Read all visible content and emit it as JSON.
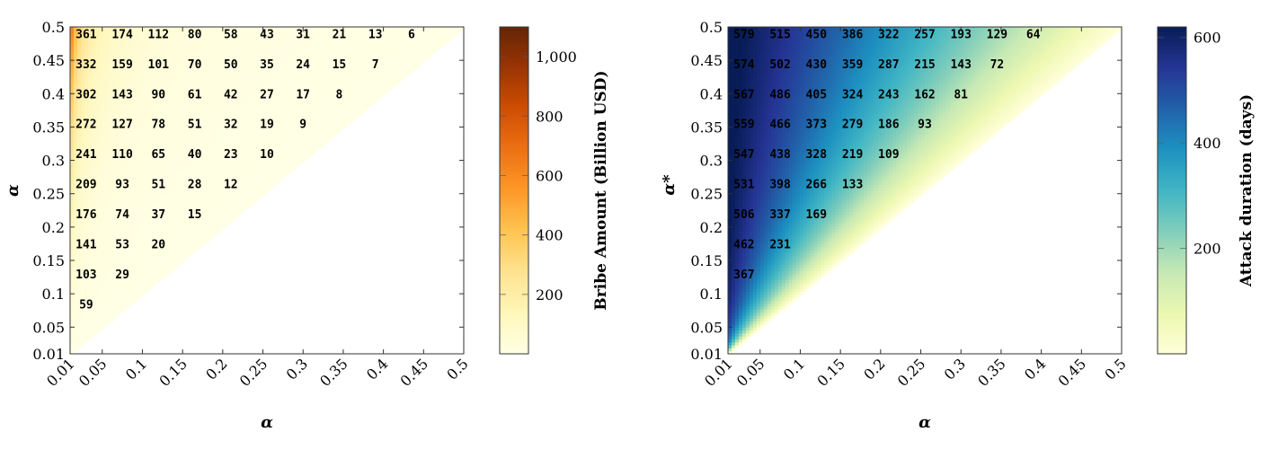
{
  "chart_data": [
    {
      "type": "heatmap",
      "xlabel": "α",
      "ylabel": "α",
      "colorbar_label": "Bribe Amount (Billion USD)",
      "colorbar_ticks": [
        "200",
        "400",
        "600",
        "800",
        "1,000"
      ],
      "colorbar_tick_values": [
        200,
        400,
        600,
        800,
        1000
      ],
      "colorbar_range": [
        0,
        1100
      ],
      "x_ticks": [
        "0.01",
        "0.05",
        "0.1",
        "0.15",
        "0.2",
        "0.25",
        "0.3",
        "0.35",
        "0.4",
        "0.45",
        "0.5"
      ],
      "y_ticks": [
        "0.01",
        "0.05",
        "0.1",
        "0.15",
        "0.2",
        "0.25",
        "0.3",
        "0.35",
        "0.4",
        "0.45",
        "0.5"
      ],
      "xlim": [
        0.01,
        0.5
      ],
      "ylim": [
        0.01,
        0.5
      ],
      "colormap": "YlOrBr",
      "annotations": [
        {
          "x": 0.03,
          "y": 0.49,
          "value": 361
        },
        {
          "x": 0.075,
          "y": 0.49,
          "value": 174
        },
        {
          "x": 0.12,
          "y": 0.49,
          "value": 112
        },
        {
          "x": 0.165,
          "y": 0.49,
          "value": 80
        },
        {
          "x": 0.21,
          "y": 0.49,
          "value": 58
        },
        {
          "x": 0.255,
          "y": 0.49,
          "value": 43
        },
        {
          "x": 0.3,
          "y": 0.49,
          "value": 31
        },
        {
          "x": 0.345,
          "y": 0.49,
          "value": 21
        },
        {
          "x": 0.39,
          "y": 0.49,
          "value": 13
        },
        {
          "x": 0.435,
          "y": 0.49,
          "value": 6
        },
        {
          "x": 0.03,
          "y": 0.445,
          "value": 332
        },
        {
          "x": 0.075,
          "y": 0.445,
          "value": 159
        },
        {
          "x": 0.12,
          "y": 0.445,
          "value": 101
        },
        {
          "x": 0.165,
          "y": 0.445,
          "value": 70
        },
        {
          "x": 0.21,
          "y": 0.445,
          "value": 50
        },
        {
          "x": 0.255,
          "y": 0.445,
          "value": 35
        },
        {
          "x": 0.3,
          "y": 0.445,
          "value": 24
        },
        {
          "x": 0.345,
          "y": 0.445,
          "value": 15
        },
        {
          "x": 0.39,
          "y": 0.445,
          "value": 7
        },
        {
          "x": 0.03,
          "y": 0.4,
          "value": 302
        },
        {
          "x": 0.075,
          "y": 0.4,
          "value": 143
        },
        {
          "x": 0.12,
          "y": 0.4,
          "value": 90
        },
        {
          "x": 0.165,
          "y": 0.4,
          "value": 61
        },
        {
          "x": 0.21,
          "y": 0.4,
          "value": 42
        },
        {
          "x": 0.255,
          "y": 0.4,
          "value": 27
        },
        {
          "x": 0.3,
          "y": 0.4,
          "value": 17
        },
        {
          "x": 0.345,
          "y": 0.4,
          "value": 8
        },
        {
          "x": 0.03,
          "y": 0.355,
          "value": 272
        },
        {
          "x": 0.075,
          "y": 0.355,
          "value": 127
        },
        {
          "x": 0.12,
          "y": 0.355,
          "value": 78
        },
        {
          "x": 0.165,
          "y": 0.355,
          "value": 51
        },
        {
          "x": 0.21,
          "y": 0.355,
          "value": 32
        },
        {
          "x": 0.255,
          "y": 0.355,
          "value": 19
        },
        {
          "x": 0.3,
          "y": 0.355,
          "value": 9
        },
        {
          "x": 0.03,
          "y": 0.31,
          "value": 241
        },
        {
          "x": 0.075,
          "y": 0.31,
          "value": 110
        },
        {
          "x": 0.12,
          "y": 0.31,
          "value": 65
        },
        {
          "x": 0.165,
          "y": 0.31,
          "value": 40
        },
        {
          "x": 0.21,
          "y": 0.31,
          "value": 23
        },
        {
          "x": 0.255,
          "y": 0.31,
          "value": 10
        },
        {
          "x": 0.03,
          "y": 0.265,
          "value": 209
        },
        {
          "x": 0.075,
          "y": 0.265,
          "value": 93
        },
        {
          "x": 0.12,
          "y": 0.265,
          "value": 51
        },
        {
          "x": 0.165,
          "y": 0.265,
          "value": 28
        },
        {
          "x": 0.21,
          "y": 0.265,
          "value": 12
        },
        {
          "x": 0.03,
          "y": 0.22,
          "value": 176
        },
        {
          "x": 0.075,
          "y": 0.22,
          "value": 74
        },
        {
          "x": 0.12,
          "y": 0.22,
          "value": 37
        },
        {
          "x": 0.165,
          "y": 0.22,
          "value": 15
        },
        {
          "x": 0.03,
          "y": 0.175,
          "value": 141
        },
        {
          "x": 0.075,
          "y": 0.175,
          "value": 53
        },
        {
          "x": 0.12,
          "y": 0.175,
          "value": 20
        },
        {
          "x": 0.03,
          "y": 0.13,
          "value": 103
        },
        {
          "x": 0.075,
          "y": 0.13,
          "value": 29
        },
        {
          "x": 0.03,
          "y": 0.085,
          "value": 59
        }
      ]
    },
    {
      "type": "heatmap",
      "xlabel": "α",
      "ylabel": "α*",
      "colorbar_label": "Attack duration (days)",
      "colorbar_ticks": [
        "200",
        "400",
        "600"
      ],
      "colorbar_tick_values": [
        200,
        400,
        600
      ],
      "colorbar_range": [
        0,
        620
      ],
      "x_ticks": [
        "0.01",
        "0.05",
        "0.1",
        "0.15",
        "0.2",
        "0.25",
        "0.3",
        "0.35",
        "0.4",
        "0.45",
        "0.5"
      ],
      "y_ticks": [
        "0.01",
        "0.05",
        "0.1",
        "0.15",
        "0.2",
        "0.25",
        "0.3",
        "0.35",
        "0.4",
        "0.45",
        "0.5"
      ],
      "xlim": [
        0.01,
        0.5
      ],
      "ylim": [
        0.01,
        0.5
      ],
      "colormap": "YlGnBu",
      "annotations": [
        {
          "x": 0.03,
          "y": 0.49,
          "value": 579
        },
        {
          "x": 0.075,
          "y": 0.49,
          "value": 515
        },
        {
          "x": 0.12,
          "y": 0.49,
          "value": 450
        },
        {
          "x": 0.165,
          "y": 0.49,
          "value": 386
        },
        {
          "x": 0.21,
          "y": 0.49,
          "value": 322
        },
        {
          "x": 0.255,
          "y": 0.49,
          "value": 257
        },
        {
          "x": 0.3,
          "y": 0.49,
          "value": 193
        },
        {
          "x": 0.345,
          "y": 0.49,
          "value": 129
        },
        {
          "x": 0.39,
          "y": 0.49,
          "value": 64
        },
        {
          "x": 0.03,
          "y": 0.445,
          "value": 574
        },
        {
          "x": 0.075,
          "y": 0.445,
          "value": 502
        },
        {
          "x": 0.12,
          "y": 0.445,
          "value": 430
        },
        {
          "x": 0.165,
          "y": 0.445,
          "value": 359
        },
        {
          "x": 0.21,
          "y": 0.445,
          "value": 287
        },
        {
          "x": 0.255,
          "y": 0.445,
          "value": 215
        },
        {
          "x": 0.3,
          "y": 0.445,
          "value": 143
        },
        {
          "x": 0.345,
          "y": 0.445,
          "value": 72
        },
        {
          "x": 0.03,
          "y": 0.4,
          "value": 567
        },
        {
          "x": 0.075,
          "y": 0.4,
          "value": 486
        },
        {
          "x": 0.12,
          "y": 0.4,
          "value": 405
        },
        {
          "x": 0.165,
          "y": 0.4,
          "value": 324
        },
        {
          "x": 0.21,
          "y": 0.4,
          "value": 243
        },
        {
          "x": 0.255,
          "y": 0.4,
          "value": 162
        },
        {
          "x": 0.3,
          "y": 0.4,
          "value": 81
        },
        {
          "x": 0.03,
          "y": 0.355,
          "value": 559
        },
        {
          "x": 0.075,
          "y": 0.355,
          "value": 466
        },
        {
          "x": 0.12,
          "y": 0.355,
          "value": 373
        },
        {
          "x": 0.165,
          "y": 0.355,
          "value": 279
        },
        {
          "x": 0.21,
          "y": 0.355,
          "value": 186
        },
        {
          "x": 0.255,
          "y": 0.355,
          "value": 93
        },
        {
          "x": 0.03,
          "y": 0.31,
          "value": 547
        },
        {
          "x": 0.075,
          "y": 0.31,
          "value": 438
        },
        {
          "x": 0.12,
          "y": 0.31,
          "value": 328
        },
        {
          "x": 0.165,
          "y": 0.31,
          "value": 219
        },
        {
          "x": 0.21,
          "y": 0.31,
          "value": 109
        },
        {
          "x": 0.03,
          "y": 0.265,
          "value": 531
        },
        {
          "x": 0.075,
          "y": 0.265,
          "value": 398
        },
        {
          "x": 0.12,
          "y": 0.265,
          "value": 266
        },
        {
          "x": 0.165,
          "y": 0.265,
          "value": 133
        },
        {
          "x": 0.03,
          "y": 0.22,
          "value": 506
        },
        {
          "x": 0.075,
          "y": 0.22,
          "value": 337
        },
        {
          "x": 0.12,
          "y": 0.22,
          "value": 169
        },
        {
          "x": 0.03,
          "y": 0.175,
          "value": 462
        },
        {
          "x": 0.075,
          "y": 0.175,
          "value": 231
        },
        {
          "x": 0.03,
          "y": 0.13,
          "value": 367
        }
      ]
    }
  ]
}
